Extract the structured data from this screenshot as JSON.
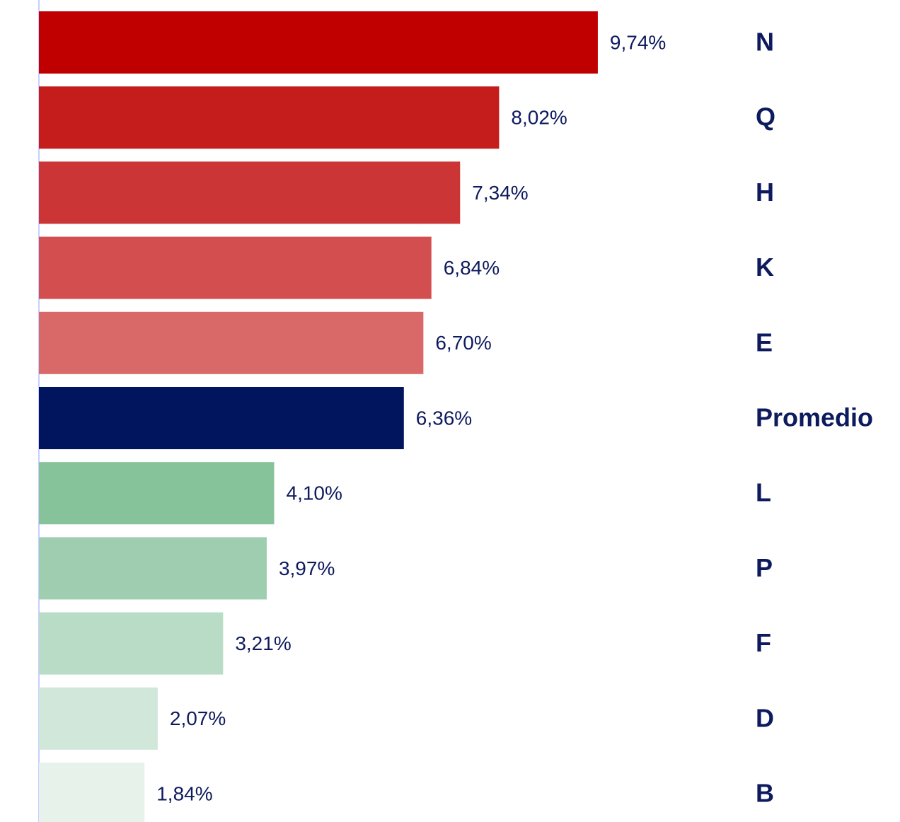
{
  "chart_data": {
    "type": "bar",
    "orientation": "horizontal",
    "categories": [
      "N",
      "Q",
      "H",
      "K",
      "E",
      "Promedio",
      "L",
      "P",
      "F",
      "D",
      "B"
    ],
    "values": [
      9.74,
      8.02,
      7.34,
      6.84,
      6.7,
      6.36,
      4.1,
      3.97,
      3.21,
      2.07,
      1.84
    ],
    "value_labels": [
      "9,74%",
      "8,02%",
      "7,34%",
      "6,84%",
      "6,70%",
      "6,36%",
      "4,10%",
      "3,97%",
      "3,21%",
      "2,07%",
      "1,84%"
    ],
    "colors": [
      "#c00000",
      "#c51c1c",
      "#cc3535",
      "#d34e4e",
      "#d96868",
      "#00155e",
      "#86c39b",
      "#9fcdb0",
      "#b9dcc7",
      "#d0e7d9",
      "#e6f2ea"
    ],
    "xlim": [
      0,
      10
    ]
  }
}
